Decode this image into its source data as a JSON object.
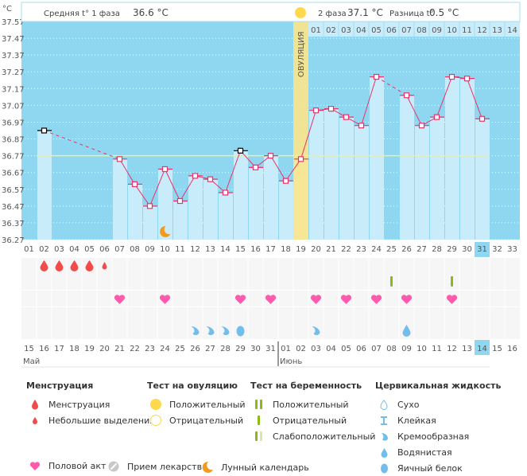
{
  "header": {
    "phase1_label": "Средняя t° 1 фаза",
    "phase1_value": "36.6 °C",
    "phase2_label": "2 фаза",
    "phase2_value": "37.1 °C",
    "diff_label": "Разница t°",
    "diff_value": "0.5 °C",
    "unit": "°C",
    "ovulation_label": "ОВУЛЯЦИЯ"
  },
  "chart_data": {
    "type": "line",
    "title": "",
    "ylabel": "°C",
    "xlabel": "",
    "ylim": [
      36.27,
      37.57
    ],
    "yticks": [
      "37.57",
      "37.47",
      "37.37",
      "37.27",
      "37.17",
      "37.07",
      "36.97",
      "36.87",
      "36.77",
      "36.67",
      "36.57",
      "36.47",
      "36.37",
      "36.27"
    ],
    "cycle_days": [
      "01",
      "02",
      "03",
      "04",
      "05",
      "06",
      "07",
      "08",
      "09",
      "10",
      "11",
      "12",
      "13",
      "14",
      "15",
      "16",
      "17",
      "18",
      "19",
      "20",
      "21",
      "22",
      "23",
      "24",
      "25",
      "26",
      "27",
      "28",
      "29",
      "30",
      "31",
      "32",
      "33"
    ],
    "dates": [
      "15",
      "16",
      "17",
      "18",
      "19",
      "20",
      "21",
      "22",
      "23",
      "24",
      "25",
      "26",
      "27",
      "28",
      "29",
      "30",
      "31",
      "01",
      "02",
      "03",
      "04",
      "05",
      "06",
      "07",
      "08",
      "09",
      "10",
      "11",
      "12",
      "13",
      "14",
      "15",
      "16"
    ],
    "weekend_dates_idx": [
      1,
      2,
      8,
      9,
      15,
      16,
      22,
      23,
      28
    ],
    "months": [
      {
        "label": "Май",
        "start_idx": 0
      },
      {
        "label": "Июнь",
        "start_idx": 17
      }
    ],
    "phase2_days": [
      "01",
      "02",
      "03",
      "04",
      "05",
      "06",
      "07",
      "08",
      "09",
      "10",
      "11",
      "12",
      "13",
      "14"
    ],
    "phase2_start_idx": 19,
    "ovulation_day_idx": 18,
    "today_idx": 30,
    "coverline": 36.77,
    "series": [
      {
        "name": "Базальная температура",
        "values": [
          null,
          36.92,
          null,
          null,
          null,
          null,
          36.75,
          36.6,
          36.47,
          36.69,
          36.5,
          36.65,
          36.63,
          36.55,
          36.8,
          36.7,
          36.77,
          36.62,
          36.75,
          37.04,
          37.05,
          37.0,
          36.95,
          37.24,
          null,
          37.13,
          36.95,
          37.0,
          37.24,
          37.23,
          36.99,
          null,
          null
        ],
        "excluded_idx": [
          1,
          14
        ]
      }
    ],
    "markers": {
      "menstruation": [
        1,
        2,
        3,
        4
      ],
      "spotting": [
        5
      ],
      "pregnancy_test_negative": [
        24,
        28
      ],
      "intercourse": [
        6,
        9,
        14,
        16,
        19,
        21,
        23,
        25,
        28
      ],
      "fluid_creamy": [
        11,
        12,
        13,
        19
      ],
      "fluid_egg_white": [
        14
      ],
      "fluid_watery": [
        25
      ],
      "moon": [
        9
      ]
    }
  },
  "colors": {
    "plot_bg": "#8fd6f1",
    "bar": "#c9ecfb",
    "line": "#e8336b",
    "coverline": "#f5ee8a",
    "ovulation": "#fbe68a",
    "blood": "#f24b4b",
    "heart": "#ff5aae",
    "test": "#8db81a",
    "fluid": "#72bde9",
    "moon": "#f39a1c",
    "weekend": "#e8336b"
  },
  "legend": {
    "menstruation": {
      "title": "Менструация",
      "items": [
        "Менструация",
        "Небольшие выделения"
      ]
    },
    "ovulation_test": {
      "title": "Тест на овуляцию",
      "items": [
        "Положительный",
        "Отрицательный"
      ]
    },
    "pregnancy_test": {
      "title": "Тест на беременность",
      "items": [
        "Положительный",
        "Отрицательный",
        "Слабоположительный"
      ]
    },
    "cervical_fluid": {
      "title": "Цервикальная жидкость",
      "items": [
        "Сухо",
        "Клейкая",
        "Кремообразная",
        "Водянистая",
        "Яичный белок"
      ]
    },
    "other": {
      "intercourse": "Половой акт",
      "medication": "Прием лекарств",
      "moon": "Лунный календарь"
    }
  }
}
